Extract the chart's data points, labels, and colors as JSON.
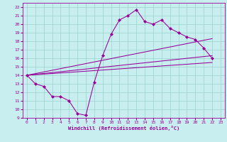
{
  "xlabel": "Windchill (Refroidissement éolien,°C)",
  "bg_color": "#c8eef0",
  "grid_color": "#a0d8d0",
  "line_color": "#990099",
  "xlim": [
    -0.5,
    23.5
  ],
  "ylim": [
    9,
    22.5
  ],
  "ytick_vals": [
    9,
    10,
    11,
    12,
    13,
    14,
    15,
    16,
    17,
    18,
    19,
    20,
    21,
    22
  ],
  "xtick_vals": [
    0,
    1,
    2,
    3,
    4,
    5,
    6,
    7,
    8,
    9,
    10,
    11,
    12,
    13,
    14,
    15,
    16,
    17,
    18,
    19,
    20,
    21,
    22,
    23
  ],
  "series_main": {
    "x": [
      0,
      1,
      2,
      3,
      4,
      5,
      6,
      7,
      8,
      9,
      10,
      11,
      12,
      13,
      14,
      15,
      16,
      17,
      18,
      19,
      20,
      21,
      22
    ],
    "y": [
      14.0,
      13.0,
      12.7,
      11.5,
      11.5,
      11.0,
      9.5,
      9.3,
      13.2,
      16.3,
      18.8,
      20.5,
      21.0,
      21.7,
      20.3,
      20.0,
      20.5,
      19.5,
      19.0,
      18.5,
      18.2,
      17.2,
      16.0
    ]
  },
  "series_lines": [
    {
      "x": [
        0,
        22
      ],
      "y": [
        14.0,
        18.3
      ]
    },
    {
      "x": [
        0,
        22
      ],
      "y": [
        14.0,
        16.3
      ]
    },
    {
      "x": [
        0,
        22
      ],
      "y": [
        14.0,
        15.5
      ]
    }
  ]
}
